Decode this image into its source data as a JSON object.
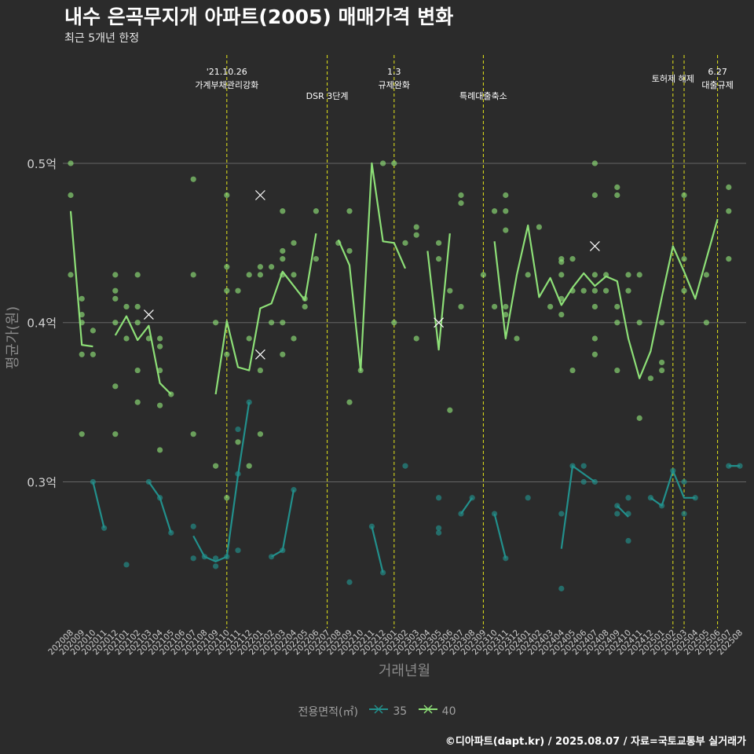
{
  "title": "내수 은곡무지개 아파트(2005) 매매가격 변화",
  "subtitle": "최근 5개년 한정",
  "caption": "©디아파트(dapt.kr) / 2025.08.07 / 자료=국토교통부 실거래가",
  "colors": {
    "background": "#2b2b2b",
    "gridline": "#666666",
    "event_line": "#e5e619",
    "series_35": "#22908c",
    "series_40": "#8ddf77"
  },
  "chart_data": {
    "type": "line",
    "xlabel": "거래년월",
    "ylabel": "평균가(원)",
    "y_unit": "억",
    "ylim": [
      0.21,
      0.57
    ],
    "y_ticks": [
      {
        "value": 0.3,
        "label": "0.3억"
      },
      {
        "value": 0.4,
        "label": "0.4억"
      },
      {
        "value": 0.5,
        "label": "0.5억"
      }
    ],
    "grid": "horizontal",
    "x": [
      "202008",
      "202009",
      "202010",
      "202011",
      "202012",
      "202101",
      "202102",
      "202103",
      "202104",
      "202105",
      "202106",
      "202107",
      "202108",
      "202109",
      "202110",
      "202111",
      "202112",
      "202201",
      "202202",
      "202203",
      "202204",
      "202205",
      "202206",
      "202207",
      "202208",
      "202209",
      "202210",
      "202211",
      "202212",
      "202301",
      "202302",
      "202303",
      "202304",
      "202305",
      "202306",
      "202307",
      "202308",
      "202309",
      "202310",
      "202311",
      "202312",
      "202401",
      "202402",
      "202403",
      "202404",
      "202405",
      "202406",
      "202407",
      "202408",
      "202409",
      "202410",
      "202411",
      "202412",
      "202501",
      "202502",
      "202503",
      "202504",
      "202505",
      "202506",
      "202507",
      "202508"
    ],
    "events": [
      {
        "x": "202110",
        "label": "'21.10.26\n가계부채관리강화"
      },
      {
        "x": "202207",
        "label": "DSR 3단계"
      },
      {
        "x": "202301",
        "label": "1.3\n규제완화"
      },
      {
        "x": "202309",
        "label": "특례대출축소"
      },
      {
        "x": "202502",
        "label": "토허제 해제"
      },
      {
        "x": "202503",
        "label": ""
      },
      {
        "x": "202506",
        "label": "6.27\n대출규제"
      }
    ],
    "legend": {
      "title": "전용면적(㎡)",
      "position": "bottom"
    },
    "series": [
      {
        "name": "35",
        "values": [
          null,
          null,
          0.3,
          0.271,
          null,
          0.248,
          null,
          0.3,
          0.29,
          0.268,
          null,
          0.266,
          0.253,
          0.25,
          0.253,
          0.304,
          0.35,
          null,
          0.253,
          0.257,
          0.295,
          null,
          null,
          null,
          null,
          0.237,
          null,
          0.272,
          0.243,
          null,
          0.31,
          null,
          null,
          0.279,
          null,
          0.28,
          0.29,
          null,
          0.28,
          0.252,
          null,
          0.29,
          null,
          null,
          0.258,
          0.31,
          0.305,
          0.3,
          null,
          0.285,
          0.278,
          null,
          0.29,
          0.285,
          0.307,
          0.29,
          0.29,
          null,
          null,
          0.31,
          0.31
        ],
        "points": [
          [
            "202010",
            0.3
          ],
          [
            "202011",
            0.271
          ],
          [
            "202101",
            0.248
          ],
          [
            "202103",
            0.3
          ],
          [
            "202104",
            0.29
          ],
          [
            "202105",
            0.268
          ],
          [
            "202107",
            0.272
          ],
          [
            "202107",
            0.252
          ],
          [
            "202108",
            0.253
          ],
          [
            "202109",
            0.252
          ],
          [
            "202109",
            0.247
          ],
          [
            "202110",
            0.253
          ],
          [
            "202111",
            0.333
          ],
          [
            "202111",
            0.305
          ],
          [
            "202111",
            0.257
          ],
          [
            "202112",
            0.35
          ],
          [
            "202202",
            0.253
          ],
          [
            "202203",
            0.257
          ],
          [
            "202204",
            0.295
          ],
          [
            "202209",
            0.237
          ],
          [
            "202211",
            0.272
          ],
          [
            "202212",
            0.243
          ],
          [
            "202302",
            0.31
          ],
          [
            "202305",
            0.29
          ],
          [
            "202305",
            0.271
          ],
          [
            "202305",
            0.268
          ],
          [
            "202307",
            0.28
          ],
          [
            "202308",
            0.29
          ],
          [
            "202310",
            0.28
          ],
          [
            "202311",
            0.252
          ],
          [
            "202401",
            0.29
          ],
          [
            "202404",
            0.28
          ],
          [
            "202404",
            0.233
          ],
          [
            "202405",
            0.31
          ],
          [
            "202406",
            0.31
          ],
          [
            "202406",
            0.3
          ],
          [
            "202407",
            0.3
          ],
          [
            "202409",
            0.285
          ],
          [
            "202409",
            0.28
          ],
          [
            "202410",
            0.29
          ],
          [
            "202410",
            0.28
          ],
          [
            "202410",
            0.263
          ],
          [
            "202412",
            0.29
          ],
          [
            "202501",
            0.285
          ],
          [
            "202502",
            0.307
          ],
          [
            "202503",
            0.3
          ],
          [
            "202503",
            0.28
          ],
          [
            "202504",
            0.29
          ],
          [
            "202507",
            0.31
          ],
          [
            "202508",
            0.31
          ]
        ],
        "median_marks": []
      },
      {
        "name": "40",
        "values": [
          0.47,
          0.386,
          0.385,
          null,
          0.392,
          0.404,
          0.389,
          0.398,
          0.362,
          0.355,
          null,
          0.417,
          null,
          0.355,
          0.401,
          0.372,
          0.37,
          0.409,
          0.412,
          0.432,
          0.423,
          0.414,
          0.456,
          null,
          0.452,
          0.436,
          0.37,
          0.5,
          0.451,
          0.45,
          0.434,
          null,
          0.445,
          0.383,
          0.456,
          null,
          0.43,
          null,
          0.451,
          0.39,
          0.43,
          0.461,
          0.416,
          0.428,
          0.411,
          0.422,
          0.431,
          0.423,
          0.429,
          0.426,
          0.39,
          0.365,
          0.382,
          0.416,
          0.448,
          0.432,
          0.415,
          0.44,
          0.465,
          null,
          null
        ],
        "points": [
          [
            "202008",
            0.5
          ],
          [
            "202008",
            0.48
          ],
          [
            "202008",
            0.43
          ],
          [
            "202009",
            0.415
          ],
          [
            "202009",
            0.405
          ],
          [
            "202009",
            0.4
          ],
          [
            "202009",
            0.38
          ],
          [
            "202009",
            0.33
          ],
          [
            "202010",
            0.395
          ],
          [
            "202010",
            0.38
          ],
          [
            "202012",
            0.43
          ],
          [
            "202012",
            0.42
          ],
          [
            "202012",
            0.415
          ],
          [
            "202012",
            0.4
          ],
          [
            "202012",
            0.36
          ],
          [
            "202012",
            0.33
          ],
          [
            "202101",
            0.41
          ],
          [
            "202101",
            0.39
          ],
          [
            "202102",
            0.43
          ],
          [
            "202102",
            0.41
          ],
          [
            "202102",
            0.4
          ],
          [
            "202102",
            0.37
          ],
          [
            "202102",
            0.35
          ],
          [
            "202103",
            0.39
          ],
          [
            "202104",
            0.39
          ],
          [
            "202104",
            0.385
          ],
          [
            "202104",
            0.37
          ],
          [
            "202104",
            0.348
          ],
          [
            "202104",
            0.32
          ],
          [
            "202105",
            0.355
          ],
          [
            "202107",
            0.49
          ],
          [
            "202107",
            0.43
          ],
          [
            "202107",
            0.33
          ],
          [
            "202109",
            0.4
          ],
          [
            "202109",
            0.31
          ],
          [
            "202110",
            0.48
          ],
          [
            "202110",
            0.435
          ],
          [
            "202110",
            0.42
          ],
          [
            "202110",
            0.38
          ],
          [
            "202110",
            0.29
          ],
          [
            "202111",
            0.42
          ],
          [
            "202111",
            0.325
          ],
          [
            "202112",
            0.43
          ],
          [
            "202112",
            0.39
          ],
          [
            "202112",
            0.31
          ],
          [
            "202201",
            0.435
          ],
          [
            "202201",
            0.43
          ],
          [
            "202201",
            0.37
          ],
          [
            "202201",
            0.33
          ],
          [
            "202202",
            0.435
          ],
          [
            "202202",
            0.4
          ],
          [
            "202203",
            0.47
          ],
          [
            "202203",
            0.445
          ],
          [
            "202203",
            0.44
          ],
          [
            "202203",
            0.43
          ],
          [
            "202203",
            0.4
          ],
          [
            "202203",
            0.38
          ],
          [
            "202204",
            0.45
          ],
          [
            "202204",
            0.43
          ],
          [
            "202204",
            0.39
          ],
          [
            "202205",
            0.415
          ],
          [
            "202205",
            0.41
          ],
          [
            "202206",
            0.47
          ],
          [
            "202206",
            0.44
          ],
          [
            "202208",
            0.45
          ],
          [
            "202209",
            0.47
          ],
          [
            "202209",
            0.445
          ],
          [
            "202209",
            0.35
          ],
          [
            "202210",
            0.37
          ],
          [
            "202212",
            0.5
          ],
          [
            "202301",
            0.5
          ],
          [
            "202301",
            0.4
          ],
          [
            "202302",
            0.45
          ],
          [
            "202303",
            0.46
          ],
          [
            "202303",
            0.455
          ],
          [
            "202303",
            0.39
          ],
          [
            "202305",
            0.45
          ],
          [
            "202305",
            0.44
          ],
          [
            "202306",
            0.42
          ],
          [
            "202306",
            0.345
          ],
          [
            "202307",
            0.48
          ],
          [
            "202307",
            0.475
          ],
          [
            "202307",
            0.41
          ],
          [
            "202309",
            0.43
          ],
          [
            "202310",
            0.47
          ],
          [
            "202310",
            0.41
          ],
          [
            "202311",
            0.48
          ],
          [
            "202311",
            0.47
          ],
          [
            "202311",
            0.458
          ],
          [
            "202311",
            0.41
          ],
          [
            "202311",
            0.405
          ],
          [
            "202312",
            0.39
          ],
          [
            "202401",
            0.43
          ],
          [
            "202402",
            0.46
          ],
          [
            "202403",
            0.41
          ],
          [
            "202404",
            0.44
          ],
          [
            "202404",
            0.438
          ],
          [
            "202404",
            0.43
          ],
          [
            "202404",
            0.415
          ],
          [
            "202404",
            0.405
          ],
          [
            "202405",
            0.44
          ],
          [
            "202405",
            0.42
          ],
          [
            "202405",
            0.37
          ],
          [
            "202406",
            0.42
          ],
          [
            "202407",
            0.5
          ],
          [
            "202407",
            0.48
          ],
          [
            "202407",
            0.43
          ],
          [
            "202407",
            0.42
          ],
          [
            "202407",
            0.41
          ],
          [
            "202407",
            0.39
          ],
          [
            "202407",
            0.38
          ],
          [
            "202408",
            0.43
          ],
          [
            "202408",
            0.42
          ],
          [
            "202409",
            0.485
          ],
          [
            "202409",
            0.48
          ],
          [
            "202409",
            0.41
          ],
          [
            "202409",
            0.4
          ],
          [
            "202409",
            0.37
          ],
          [
            "202410",
            0.43
          ],
          [
            "202410",
            0.42
          ],
          [
            "202411",
            0.43
          ],
          [
            "202411",
            0.4
          ],
          [
            "202411",
            0.34
          ],
          [
            "202412",
            0.365
          ],
          [
            "202501",
            0.375
          ],
          [
            "202501",
            0.37
          ],
          [
            "202501",
            0.4
          ],
          [
            "202503",
            0.48
          ],
          [
            "202503",
            0.44
          ],
          [
            "202503",
            0.42
          ],
          [
            "202505",
            0.43
          ],
          [
            "202505",
            0.4
          ],
          [
            "202507",
            0.485
          ],
          [
            "202507",
            0.47
          ],
          [
            "202507",
            0.44
          ]
        ],
        "median_marks": [
          [
            "202103",
            0.405
          ],
          [
            "202201",
            0.48
          ],
          [
            "202201",
            0.38
          ],
          [
            "202305",
            0.4
          ],
          [
            "202407",
            0.448
          ]
        ]
      }
    ]
  }
}
